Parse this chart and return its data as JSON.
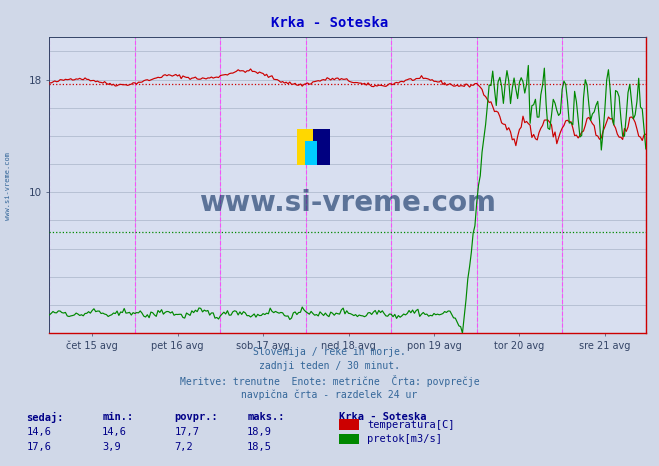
{
  "title": "Krka - Soteska",
  "title_color": "#0000cc",
  "bg_color": "#d0d8e8",
  "plot_bg_color": "#d8dff0",
  "grid_color": "#aab4c8",
  "xlabel_dates": [
    "čet 15 avg",
    "pet 16 avg",
    "sob 17 avg",
    "ned 18 avg",
    "pon 19 avg",
    "tor 20 avg",
    "sre 21 avg"
  ],
  "total_points": 336,
  "ylim": [
    0,
    21
  ],
  "ytick_vals": [
    10,
    18
  ],
  "temp_avg": 17.7,
  "temp_color": "#cc0000",
  "flow_avg": 7.2,
  "flow_color": "#008800",
  "vline_color": "#ff44ff",
  "day_vline_positions": [
    0,
    48,
    96,
    144,
    192,
    240,
    288,
    335
  ],
  "footer_lines": [
    "Slovenija / reke in morje.",
    "zadnji teden / 30 minut.",
    "Meritve: trenutne  Enote: metrične  Črta: povprečje",
    "navpična črta - razdelek 24 ur"
  ],
  "footer_color": "#336699",
  "table_headers": [
    "sedaj:",
    "min.:",
    "povpr.:",
    "maks.:"
  ],
  "table_row1": [
    "14,6",
    "14,6",
    "17,7",
    "18,9"
  ],
  "table_row2": [
    "17,6",
    "3,9",
    "7,2",
    "18,5"
  ],
  "table_color": "#000088",
  "legend_title": "Krka - Soteska",
  "legend_entries": [
    "temperatura[C]",
    "pretok[m3/s]"
  ],
  "legend_colors": [
    "#cc0000",
    "#008800"
  ],
  "watermark": "www.si-vreme.com",
  "watermark_color": "#1a3a6a",
  "sidebar_text": "www.si-vreme.com",
  "sidebar_color": "#336699",
  "logo_colors": [
    "#FFD700",
    "#00CCFF",
    "#000080"
  ],
  "axis_color": "#334466",
  "bottom_arrow_color": "#cc0000"
}
